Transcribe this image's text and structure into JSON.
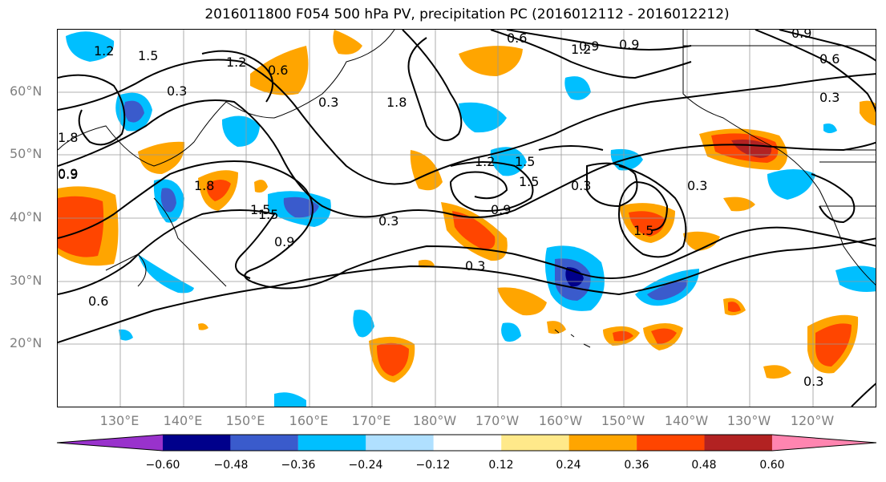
{
  "title": "2016011800 F054 500 hPa PV, precipitation PC (2016012112 - 2016012212)",
  "lat_labels": [
    "60°N",
    "50°N",
    "40°N",
    "30°N",
    "20°N"
  ],
  "lon_labels": [
    "130°E",
    "140°E",
    "150°E",
    "160°E",
    "170°E",
    "180°W",
    "170°W",
    "160°W",
    "150°W",
    "140°W",
    "130°W",
    "120°W"
  ],
  "colorbar": {
    "ticks": [
      "−0.60",
      "−0.48",
      "−0.36",
      "−0.24",
      "−0.12",
      "0.12",
      "0.24",
      "0.36",
      "0.48",
      "0.60"
    ],
    "colors": [
      "#9932cc",
      "#00008b",
      "#3a5bcc",
      "#00bfff",
      "#b0e0ff",
      "#ffffff",
      "#ffe98a",
      "#ffa500",
      "#ff4500",
      "#b22222",
      "#ff85b0"
    ]
  },
  "contour_labels": [
    "1.2",
    "1.5",
    "0.6",
    "0.3",
    "1.8",
    "0.9",
    "1.2",
    "0.9",
    "0.6",
    "0.9",
    "0.3",
    "1.8",
    "1.2",
    "1.5",
    "0.9",
    "0.3",
    "0.3",
    "0.9",
    "1.5",
    "1.2",
    "1.5",
    "0.9",
    "0.3",
    "0.6",
    "0.3",
    "0.3",
    "1.5",
    "1.8",
    "1.5",
    "0.9",
    "0.6",
    "0.3"
  ]
}
